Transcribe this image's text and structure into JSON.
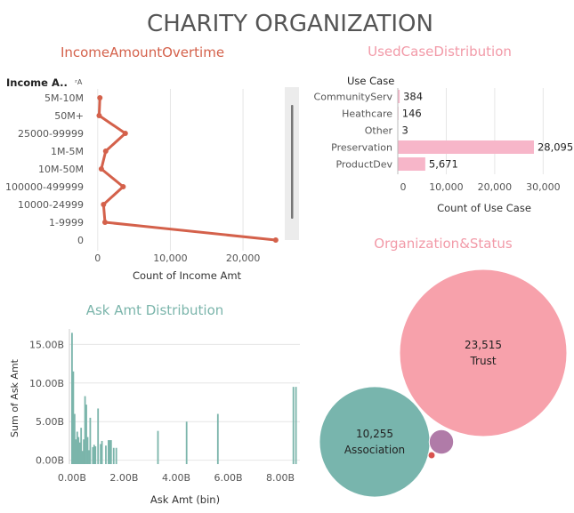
{
  "dashboard": {
    "title": "CHARITY ORGANIZATION",
    "colors": {
      "title": "#555555",
      "income": "#d4614b",
      "usecase_title": "#f29aa8",
      "usecase_bar": "#f7b6c9",
      "ask": "#7bb5ab",
      "ask_title": "#7bb5ab",
      "org_title": "#f29aa8",
      "trust": "#f7a1ab",
      "association": "#78b5ad",
      "small1": "#b07ba8",
      "small2": "#d9534f",
      "axis_text": "#555555",
      "grid": "#e6e6e6"
    }
  },
  "chart_data": [
    {
      "type": "line",
      "title": "IncomeAmountOvertime",
      "ylabel": "Income A..",
      "xlabel": "Count of Income Amt",
      "categories": [
        "5M-10M",
        "50M+",
        "25000-99999",
        "1M-5M",
        "10M-50M",
        "100000-499999",
        "10000-24999",
        "1-9999",
        "0"
      ],
      "values": [
        300,
        200,
        3800,
        1100,
        500,
        3500,
        800,
        1000,
        24500
      ],
      "xticks": [
        0,
        10000,
        20000
      ],
      "xtick_labels": [
        "0",
        "10,000",
        "20,000"
      ],
      "xlim": [
        -1200,
        25500
      ],
      "scrollbar": true
    },
    {
      "type": "bar",
      "title": "UsedCaseDistribution",
      "ylabel": "Use Case",
      "xlabel": "Count of Use Case",
      "categories": [
        "CommunityServ",
        "Heathcare",
        "Other",
        "Preservation",
        "ProductDev"
      ],
      "values": [
        384,
        146,
        3,
        28095,
        5671
      ],
      "value_labels": [
        "384",
        "146",
        "3",
        "28,095",
        "5,671"
      ],
      "xticks": [
        0,
        10000,
        20000,
        30000
      ],
      "xtick_labels": [
        "0",
        "10,000",
        "20,000",
        "30,000"
      ],
      "xlim": [
        0,
        36000
      ]
    },
    {
      "type": "bar",
      "title": "Ask Amt Distribution",
      "ylabel": "Sum of Ask Amt",
      "xlabel": "Ask Amt (bin)",
      "x": [
        0.0,
        0.05,
        0.1,
        0.15,
        0.2,
        0.25,
        0.3,
        0.35,
        0.4,
        0.45,
        0.5,
        0.55,
        0.6,
        0.65,
        0.7,
        0.8,
        0.85,
        0.9,
        1.0,
        1.1,
        1.15,
        1.3,
        1.4,
        1.45,
        1.5,
        1.6,
        1.7,
        3.3,
        4.4,
        5.6,
        8.5,
        8.6
      ],
      "values": [
        16.5,
        11.5,
        6.0,
        2.7,
        3.7,
        3.0,
        2.3,
        4.2,
        1.2,
        2.7,
        8.3,
        7.2,
        3.0,
        1.3,
        5.5,
        1.7,
        2.0,
        1.8,
        6.7,
        2.1,
        2.5,
        1.9,
        2.6,
        2.6,
        2.6,
        1.6,
        1.6,
        3.8,
        5.0,
        6.0,
        9.5,
        9.5
      ],
      "bin_width": 0.05,
      "xticks": [
        0,
        2,
        4,
        6,
        8
      ],
      "xtick_labels": [
        "0.00B",
        "2.00B",
        "4.00B",
        "6.00B",
        "8.00B"
      ],
      "yticks": [
        0,
        5,
        10,
        15
      ],
      "ytick_labels": [
        "0.00B",
        "5.00B",
        "10.00B",
        "15.00B"
      ],
      "xlim": [
        -0.1,
        8.75
      ],
      "ylim": [
        -0.5,
        17
      ]
    },
    {
      "type": "bubble",
      "title": "Organization&Status",
      "bubbles": [
        {
          "name": "Trust",
          "value": 23515,
          "value_label": "23,515",
          "color_key": "trust"
        },
        {
          "name": "Association",
          "value": 10255,
          "value_label": "10,255",
          "color_key": "association"
        },
        {
          "name": "",
          "value": 500,
          "value_label": "",
          "color_key": "small1"
        },
        {
          "name": "",
          "value": 20,
          "value_label": "",
          "color_key": "small2"
        }
      ]
    }
  ]
}
